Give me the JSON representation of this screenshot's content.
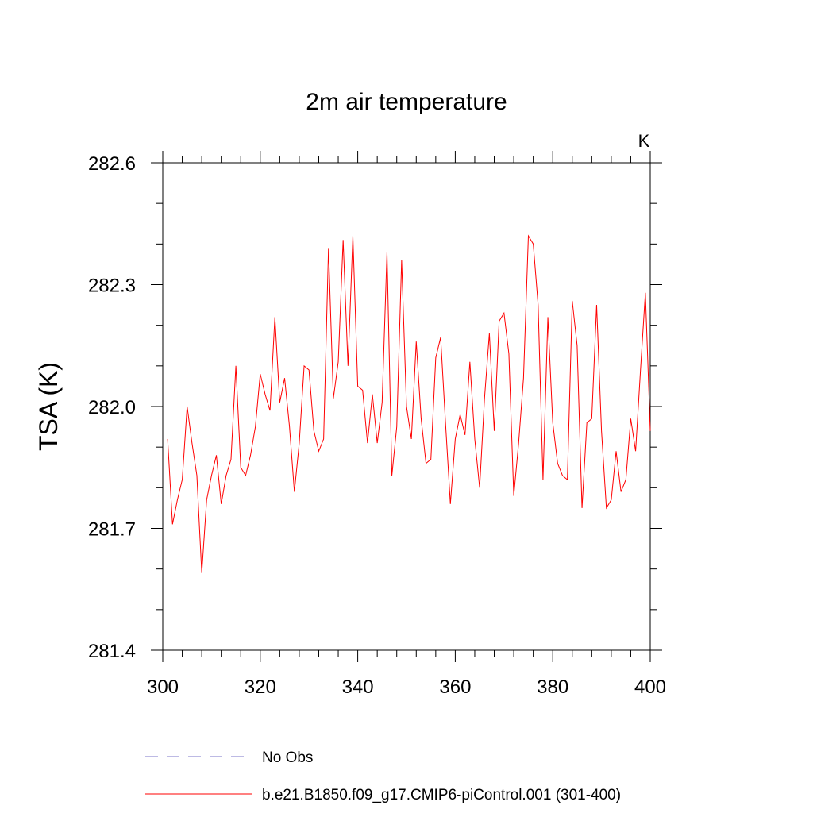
{
  "chart_data": {
    "type": "line",
    "title": "2m air temperature",
    "xlabel": "",
    "ylabel": "TSA  (K)",
    "units": "K",
    "xlim": [
      300,
      400
    ],
    "ylim": [
      281.4,
      282.6
    ],
    "x_ticks": [
      300,
      320,
      340,
      360,
      380,
      400
    ],
    "x_tick_labels": [
      "300",
      "320",
      "340",
      "360",
      "380",
      "400"
    ],
    "y_ticks": [
      281.4,
      281.7,
      282.0,
      282.3,
      282.6
    ],
    "y_tick_labels": [
      "281.4",
      "281.7",
      "282.0",
      "282.3",
      "282.6"
    ],
    "grid": false,
    "legend_position": "bottom",
    "legend": [
      {
        "label": "No Obs",
        "color": "#7b74c9",
        "style": "dashed"
      },
      {
        "label": "b.e21.B1850.f09_g17.CMIP6-piControl.001 (301-400)",
        "color": "#ff0000",
        "style": "solid"
      }
    ],
    "series": [
      {
        "name": "b.e21.B1850.f09_g17.CMIP6-piControl.001 (301-400)",
        "color": "#ff0000",
        "x": [
          301,
          302,
          303,
          304,
          305,
          306,
          307,
          308,
          309,
          310,
          311,
          312,
          313,
          314,
          315,
          316,
          317,
          318,
          319,
          320,
          321,
          322,
          323,
          324,
          325,
          326,
          327,
          328,
          329,
          330,
          331,
          332,
          333,
          334,
          335,
          336,
          337,
          338,
          339,
          340,
          341,
          342,
          343,
          344,
          345,
          346,
          347,
          348,
          349,
          350,
          351,
          352,
          353,
          354,
          355,
          356,
          357,
          358,
          359,
          360,
          361,
          362,
          363,
          364,
          365,
          366,
          367,
          368,
          369,
          370,
          371,
          372,
          373,
          374,
          375,
          376,
          377,
          378,
          379,
          380,
          381,
          382,
          383,
          384,
          385,
          386,
          387,
          388,
          389,
          390,
          391,
          392,
          393,
          394,
          395,
          396,
          397,
          398,
          399,
          400
        ],
        "values": [
          281.92,
          281.71,
          281.77,
          281.82,
          282.0,
          281.91,
          281.83,
          281.59,
          281.77,
          281.83,
          281.88,
          281.76,
          281.83,
          281.87,
          282.1,
          281.85,
          281.83,
          281.88,
          281.95,
          282.08,
          282.03,
          281.99,
          282.22,
          282.01,
          282.07,
          281.95,
          281.79,
          281.91,
          282.1,
          282.09,
          281.94,
          281.89,
          281.92,
          282.39,
          282.02,
          282.11,
          282.41,
          282.1,
          282.42,
          282.05,
          282.04,
          281.91,
          282.03,
          281.91,
          282.01,
          282.38,
          281.83,
          281.95,
          282.36,
          282.0,
          281.92,
          282.16,
          281.97,
          281.86,
          281.87,
          282.12,
          282.17,
          281.96,
          281.76,
          281.92,
          281.98,
          281.93,
          282.11,
          281.92,
          281.8,
          282.02,
          282.18,
          281.94,
          282.21,
          282.23,
          282.13,
          281.78,
          281.91,
          282.07,
          282.42,
          282.4,
          282.25,
          281.82,
          282.22,
          281.96,
          281.86,
          281.83,
          281.82,
          282.26,
          282.15,
          281.75,
          281.96,
          281.97,
          282.25,
          281.94,
          281.75,
          281.77,
          281.89,
          281.79,
          281.82,
          281.97,
          281.89,
          282.09,
          282.28,
          281.94
        ]
      }
    ]
  }
}
